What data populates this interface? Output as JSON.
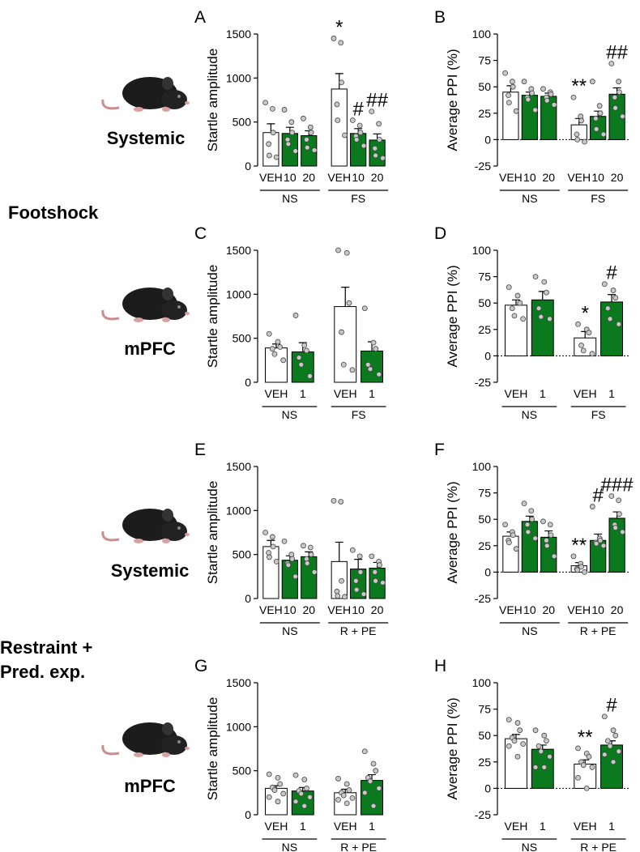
{
  "side_labels": {
    "rows": [
      "Systemic",
      "mPFC",
      "Systemic",
      "mPFC"
    ],
    "stress": [
      "Footshock",
      "Restraint +",
      "Pred. exp."
    ]
  },
  "chart_data": [
    {
      "type": "bar",
      "panel": "A",
      "ylabel": "Startle amplitude",
      "ylim": [
        0,
        1500
      ],
      "yticks": [
        0,
        500,
        1000,
        1500
      ],
      "groups": [
        {
          "label": "NS",
          "categories": [
            "VEH",
            "10",
            "20"
          ],
          "colors": [
            "#ffffff",
            "#0b7a1e",
            "#0b7a1e"
          ],
          "values": [
            380,
            370,
            345
          ],
          "errors": [
            100,
            70,
            55
          ],
          "annotations": [
            null,
            null,
            null
          ],
          "points": [
            [
              720,
              650,
              380,
              250,
              120,
              100
            ],
            [
              640,
              500,
              380,
              300,
              250,
              170
            ],
            [
              540,
              440,
              380,
              300,
              210,
              180
            ]
          ]
        },
        {
          "label": "FS",
          "categories": [
            "VEH",
            "10",
            "20"
          ],
          "colors": [
            "#ffffff",
            "#0b7a1e",
            "#0b7a1e"
          ],
          "values": [
            875,
            370,
            295
          ],
          "errors": [
            175,
            55,
            70
          ],
          "annotations": [
            "*",
            "#",
            "##"
          ],
          "points": [
            [
              1450,
              1400,
              950,
              700,
              520,
              350
            ],
            [
              520,
              460,
              380,
              340,
              300,
              230
            ],
            [
              620,
              480,
              300,
              200,
              120,
              90
            ]
          ]
        }
      ]
    },
    {
      "type": "bar",
      "panel": "B",
      "ylabel": "Average PPI (%)",
      "ylim": [
        -25,
        100
      ],
      "yticks": [
        -25,
        0,
        25,
        50,
        75,
        100
      ],
      "groups": [
        {
          "label": "NS",
          "categories": [
            "VEH",
            "10",
            "20"
          ],
          "colors": [
            "#ffffff",
            "#0b7a1e",
            "#0b7a1e"
          ],
          "values": [
            45,
            42,
            41
          ],
          "errors": [
            6,
            3,
            3
          ],
          "annotations": [
            null,
            null,
            null
          ],
          "points": [
            [
              63,
              55,
              50,
              42,
              35,
              27
            ],
            [
              55,
              48,
              44,
              40,
              38,
              28
            ],
            [
              48,
              45,
              43,
              40,
              37,
              33
            ]
          ]
        },
        {
          "label": "FS",
          "categories": [
            "VEH",
            "10",
            "20"
          ],
          "colors": [
            "#ffffff",
            "#0b7a1e",
            "#0b7a1e"
          ],
          "values": [
            14,
            22,
            43
          ],
          "errors": [
            6,
            5,
            6
          ],
          "annotations": [
            "**",
            null,
            "##"
          ],
          "points": [
            [
              40,
              22,
              18,
              5,
              0,
              -2
            ],
            [
              55,
              32,
              25,
              20,
              10,
              5
            ],
            [
              72,
              55,
              45,
              40,
              30,
              22
            ]
          ]
        }
      ]
    },
    {
      "type": "bar",
      "panel": "C",
      "ylabel": "Startle amplitude",
      "ylim": [
        0,
        1500
      ],
      "yticks": [
        0,
        500,
        1000,
        1500
      ],
      "groups": [
        {
          "label": "NS",
          "categories": [
            "VEH",
            "1"
          ],
          "colors": [
            "#ffffff",
            "#0b7a1e"
          ],
          "values": [
            390,
            345
          ],
          "errors": [
            45,
            105
          ],
          "annotations": [
            null,
            null
          ],
          "points": [
            [
              550,
              460,
              400,
              380,
              320,
              250
            ],
            [
              760,
              420,
              360,
              280,
              200,
              70
            ]
          ]
        },
        {
          "label": "FS",
          "categories": [
            "VEH",
            "1"
          ],
          "colors": [
            "#ffffff",
            "#0b7a1e"
          ],
          "values": [
            860,
            355
          ],
          "errors": [
            220,
            105
          ],
          "annotations": [
            null,
            null
          ],
          "points": [
            [
              1500,
              1470,
              900,
              570,
              200,
              140
            ],
            [
              840,
              450,
              380,
              200,
              150,
              90
            ]
          ]
        }
      ]
    },
    {
      "type": "bar",
      "panel": "D",
      "ylabel": "Average PPI (%)",
      "ylim": [
        -25,
        100
      ],
      "yticks": [
        -25,
        0,
        25,
        50,
        75,
        100
      ],
      "groups": [
        {
          "label": "NS",
          "categories": [
            "VEH",
            "1"
          ],
          "colors": [
            "#ffffff",
            "#0b7a1e"
          ],
          "values": [
            48,
            53
          ],
          "errors": [
            5,
            8
          ],
          "annotations": [
            null,
            null
          ],
          "points": [
            [
              65,
              57,
              50,
              45,
              38,
              35
            ],
            [
              75,
              70,
              60,
              45,
              37,
              35
            ]
          ]
        },
        {
          "label": "FS",
          "categories": [
            "VEH",
            "1"
          ],
          "colors": [
            "#ffffff",
            "#0b7a1e"
          ],
          "values": [
            17,
            51
          ],
          "errors": [
            6,
            7
          ],
          "annotations": [
            "*",
            "#"
          ],
          "points": [
            [
              30,
              25,
              22,
              10,
              5,
              2
            ],
            [
              68,
              62,
              55,
              45,
              35,
              30
            ]
          ]
        }
      ]
    },
    {
      "type": "bar",
      "panel": "E",
      "ylabel": "Startle amplitude",
      "ylim": [
        0,
        1500
      ],
      "yticks": [
        0,
        500,
        1000,
        1500
      ],
      "groups": [
        {
          "label": "NS",
          "categories": [
            "VEH",
            "10",
            "20"
          ],
          "colors": [
            "#ffffff",
            "#0b7a1e",
            "#0b7a1e"
          ],
          "values": [
            590,
            435,
            475
          ],
          "errors": [
            70,
            50,
            55
          ],
          "annotations": [
            null,
            null,
            null
          ],
          "points": [
            [
              750,
              700,
              590,
              520,
              470,
              420
            ],
            [
              650,
              500,
              450,
              400,
              380,
              250
            ],
            [
              600,
              580,
              500,
              450,
              400,
              300
            ]
          ]
        },
        {
          "label": "R + PE",
          "categories": [
            "VEH",
            "10",
            "20"
          ],
          "colors": [
            "#ffffff",
            "#0b7a1e",
            "#0b7a1e"
          ],
          "values": [
            420,
            335,
            345
          ],
          "errors": [
            220,
            110,
            65
          ],
          "annotations": [
            null,
            null,
            null
          ],
          "points": [
            [
              1110,
              1100,
              200,
              80,
              30,
              20
            ],
            [
              550,
              480,
              300,
              200,
              100,
              50
            ],
            [
              480,
              420,
              380,
              300,
              200,
              180
            ]
          ]
        }
      ]
    },
    {
      "type": "bar",
      "panel": "F",
      "ylabel": "Average PPI (%)",
      "ylim": [
        -25,
        100
      ],
      "yticks": [
        -25,
        0,
        25,
        50,
        75,
        100
      ],
      "groups": [
        {
          "label": "NS",
          "categories": [
            "VEH",
            "10",
            "20"
          ],
          "colors": [
            "#ffffff",
            "#0b7a1e",
            "#0b7a1e"
          ],
          "values": [
            34,
            48,
            33
          ],
          "errors": [
            4,
            5,
            6
          ],
          "annotations": [
            null,
            null,
            null
          ],
          "points": [
            [
              45,
              38,
              35,
              30,
              28,
              22
            ],
            [
              65,
              58,
              50,
              45,
              38,
              32
            ],
            [
              48,
              45,
              35,
              30,
              25,
              15
            ]
          ]
        },
        {
          "label": "R + PE",
          "categories": [
            "VEH",
            "10",
            "20"
          ],
          "colors": [
            "#ffffff",
            "#0b7a1e",
            "#0b7a1e"
          ],
          "values": [
            6,
            30,
            51
          ],
          "errors": [
            3,
            6,
            6
          ],
          "annotations": [
            "**",
            "#",
            "###"
          ],
          "points": [
            [
              15,
              8,
              5,
              3,
              2,
              0
            ],
            [
              62,
              32,
              30,
              28,
              27,
              25
            ],
            [
              72,
              68,
              55,
              45,
              42,
              38
            ]
          ]
        }
      ]
    },
    {
      "type": "bar",
      "panel": "G",
      "ylabel": "Startle amplitude",
      "ylim": [
        0,
        1500
      ],
      "yticks": [
        0,
        500,
        1000,
        1500
      ],
      "groups": [
        {
          "label": "NS",
          "categories": [
            "VEH",
            "1"
          ],
          "colors": [
            "#ffffff",
            "#0b7a1e"
          ],
          "values": [
            300,
            270
          ],
          "errors": [
            30,
            40
          ],
          "annotations": [
            null,
            null
          ],
          "points": [
            [
              460,
              420,
              350,
              310,
              280,
              240,
              200,
              150
            ],
            [
              450,
              400,
              300,
              270,
              240,
              200,
              150,
              100
            ]
          ]
        },
        {
          "label": "R + PE",
          "categories": [
            "VEH",
            "1"
          ],
          "colors": [
            "#ffffff",
            "#0b7a1e"
          ],
          "values": [
            250,
            390
          ],
          "errors": [
            40,
            65
          ],
          "annotations": [
            null,
            null
          ],
          "points": [
            [
              410,
              350,
              280,
              250,
              220,
              190,
              170,
              130
            ],
            [
              720,
              580,
              500,
              420,
              380,
              300,
              250,
              100
            ]
          ]
        }
      ]
    },
    {
      "type": "bar",
      "panel": "H",
      "ylabel": "Average PPI (%)",
      "ylim": [
        -25,
        100
      ],
      "yticks": [
        -25,
        0,
        25,
        50,
        75,
        100
      ],
      "groups": [
        {
          "label": "NS",
          "categories": [
            "VEH",
            "1"
          ],
          "colors": [
            "#ffffff",
            "#0b7a1e"
          ],
          "values": [
            47,
            37
          ],
          "errors": [
            4,
            4
          ],
          "annotations": [
            null,
            null
          ],
          "points": [
            [
              65,
              62,
              55,
              48,
              45,
              42,
              40,
              30
            ],
            [
              55,
              50,
              45,
              40,
              35,
              30,
              20,
              20
            ]
          ]
        },
        {
          "label": "R + PE",
          "categories": [
            "VEH",
            "1"
          ],
          "colors": [
            "#ffffff",
            "#0b7a1e"
          ],
          "values": [
            23,
            41
          ],
          "errors": [
            4,
            4
          ],
          "annotations": [
            "**",
            "#"
          ],
          "points": [
            [
              38,
              33,
              30,
              25,
              22,
              20,
              10,
              0
            ],
            [
              68,
              55,
              50,
              45,
              40,
              35,
              32,
              25
            ]
          ]
        }
      ]
    }
  ]
}
